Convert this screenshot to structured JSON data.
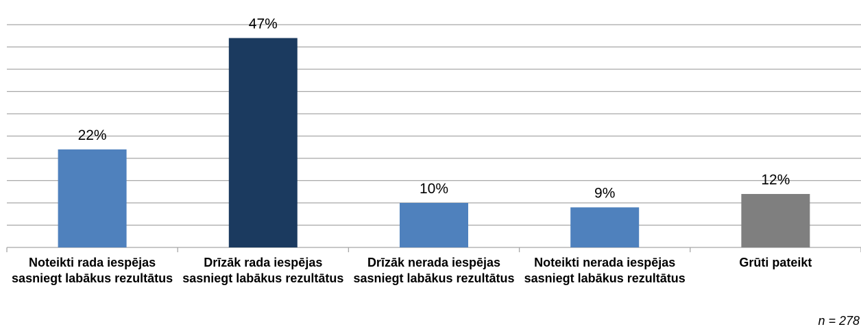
{
  "chart_data": {
    "type": "bar",
    "categories": [
      "Noteikti rada iespējas sasniegt labākus rezultātus",
      "Drīzāk rada iespējas sasniegt labākus rezultātus",
      "Drīzāk nerada iespējas sasniegt labākus rezultātus",
      "Noteikti nerada iespējas sasniegt labākus rezultātus",
      "Grūti pateikt"
    ],
    "values": [
      22,
      47,
      10,
      9,
      12
    ],
    "value_labels": [
      "22%",
      "47%",
      "10%",
      "9%",
      "12%"
    ],
    "colors": [
      "#4f81bd",
      "#1b3a5f",
      "#4f81bd",
      "#4f81bd",
      "#7f7f7f"
    ],
    "ylim": [
      0,
      50
    ],
    "yticks": [
      0,
      5,
      10,
      15,
      20,
      25,
      30,
      35,
      40,
      45,
      50
    ],
    "grid": true,
    "annotation": "n = 278"
  }
}
